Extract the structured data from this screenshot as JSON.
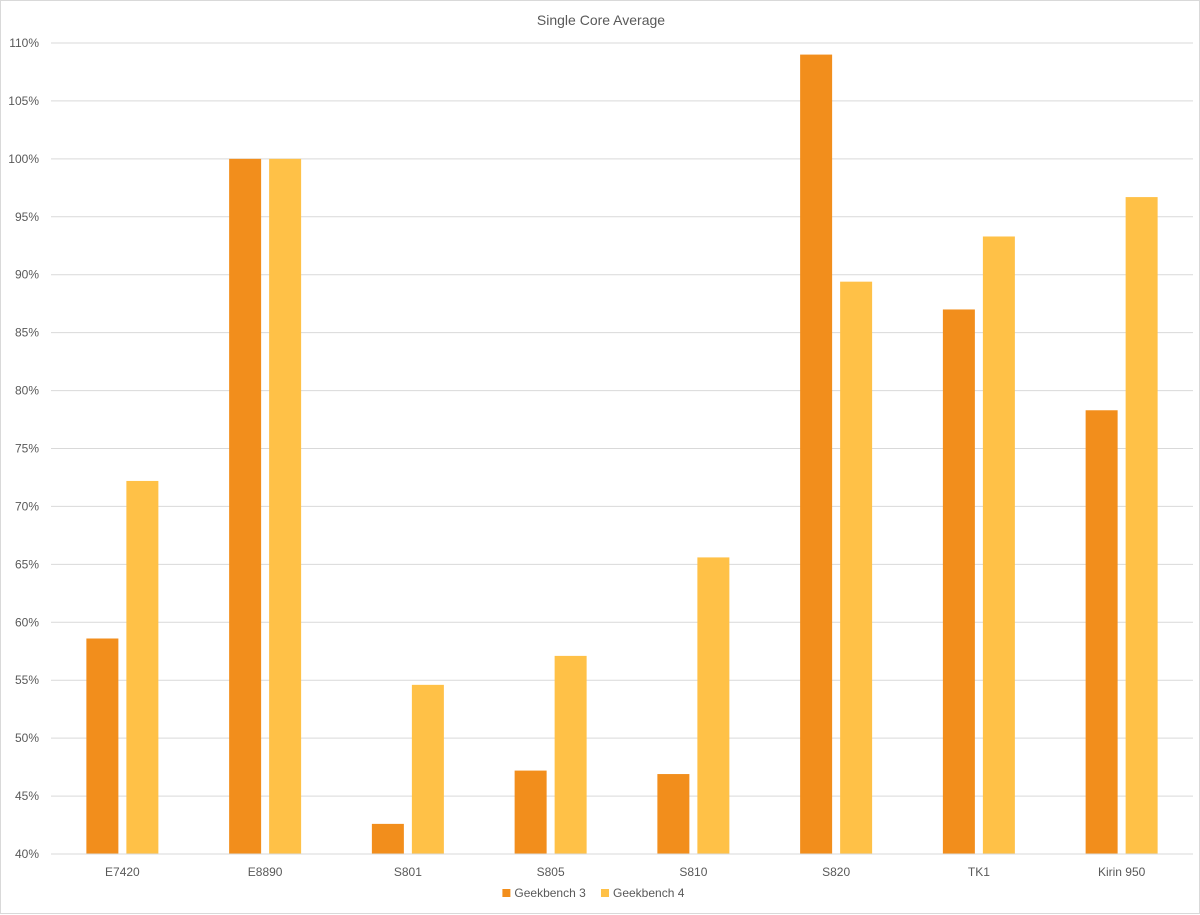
{
  "chart_data": {
    "type": "bar",
    "title": "Single Core Average",
    "xlabel": "",
    "ylabel": "",
    "categories": [
      "E7420",
      "E8890",
      "S801",
      "S805",
      "S810",
      "S820",
      "TK1",
      "Kirin 950"
    ],
    "series": [
      {
        "name": "Geekbench 3",
        "color": "#f28e1c",
        "values": [
          58.6,
          100.0,
          42.6,
          47.2,
          46.9,
          109.0,
          87.0,
          78.3
        ]
      },
      {
        "name": "Geekbench 4",
        "color": "#ffc147",
        "values": [
          72.2,
          100.0,
          54.6,
          57.1,
          65.6,
          89.4,
          93.3,
          96.7
        ]
      }
    ],
    "ylim": [
      40,
      110
    ],
    "ytick_step": 5,
    "ytick_labels": [
      "40%",
      "45%",
      "50%",
      "55%",
      "60%",
      "65%",
      "70%",
      "75%",
      "80%",
      "85%",
      "90%",
      "95%",
      "100%",
      "105%",
      "110%"
    ],
    "grid": true,
    "legend_position": "bottom"
  }
}
